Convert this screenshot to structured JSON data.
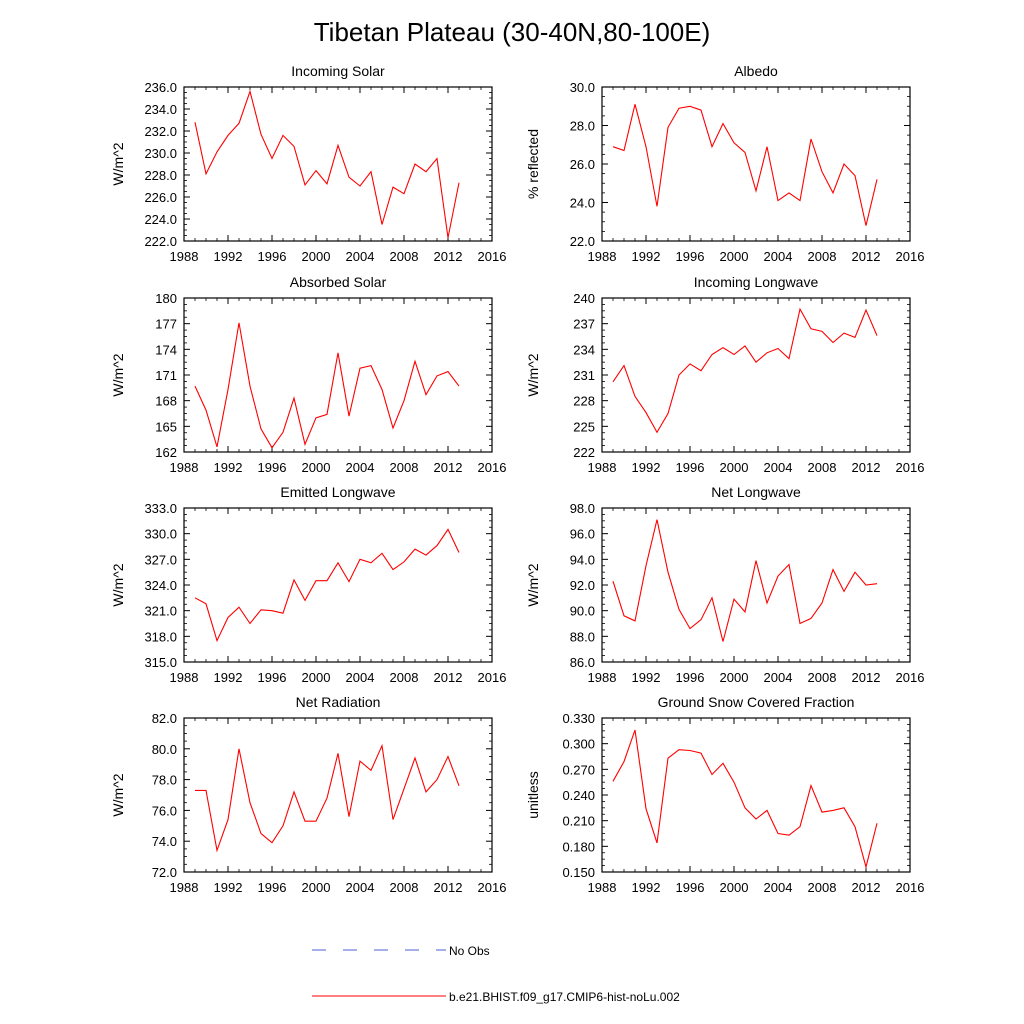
{
  "figure": {
    "title": "Tibetan Plateau (30-40N,80-100E)"
  },
  "legend": {
    "items": [
      {
        "label": "No Obs",
        "color": "#4b5fd6",
        "style": "dashed"
      },
      {
        "label": "b.e21.BHIST.f09_g17.CMIP6-hist-noLu.002",
        "color": "#ff0000",
        "style": "solid"
      }
    ]
  },
  "chart_data": [
    {
      "type": "line",
      "title": "Incoming Solar",
      "ylabel": "W/m^2",
      "xlim": [
        1988,
        2016
      ],
      "xticks": [
        "1988",
        "1992",
        "1996",
        "2000",
        "2004",
        "2008",
        "2012",
        "2016"
      ],
      "ylim": [
        222,
        236
      ],
      "yticks": [
        "222.0",
        "224.0",
        "226.0",
        "228.0",
        "230.0",
        "232.0",
        "234.0",
        "236.0"
      ],
      "x": [
        1989,
        1990,
        1991,
        1992,
        1993,
        1994,
        1995,
        1996,
        1997,
        1998,
        1999,
        2000,
        2001,
        2002,
        2003,
        2004,
        2005,
        2006,
        2007,
        2008,
        2009,
        2010,
        2011,
        2012,
        2013
      ],
      "series": [
        {
          "name": "b.e21.BHIST.f09_g17.CMIP6-hist-noLu.002",
          "color": "#ff0000",
          "values": [
            232.8,
            228.1,
            230.1,
            231.6,
            232.7,
            235.6,
            231.7,
            229.5,
            231.6,
            230.6,
            227.1,
            228.4,
            227.2,
            230.7,
            227.8,
            227.0,
            228.3,
            223.5,
            226.9,
            226.3,
            229.0,
            228.3,
            229.5,
            222.3,
            227.3
          ]
        }
      ]
    },
    {
      "type": "line",
      "title": "Albedo",
      "ylabel": "% reflected",
      "xlim": [
        1988,
        2016
      ],
      "xticks": [
        "1988",
        "1992",
        "1996",
        "2000",
        "2004",
        "2008",
        "2012",
        "2016"
      ],
      "ylim": [
        22,
        30
      ],
      "yticks": [
        "22.0",
        "24.0",
        "26.0",
        "28.0",
        "30.0"
      ],
      "x": [
        1989,
        1990,
        1991,
        1992,
        1993,
        1994,
        1995,
        1996,
        1997,
        1998,
        1999,
        2000,
        2001,
        2002,
        2003,
        2004,
        2005,
        2006,
        2007,
        2008,
        2009,
        2010,
        2011,
        2012,
        2013
      ],
      "series": [
        {
          "name": "b.e21.BHIST.f09_g17.CMIP6-hist-noLu.002",
          "color": "#ff0000",
          "values": [
            26.9,
            26.7,
            29.1,
            26.9,
            23.8,
            27.9,
            28.9,
            29.0,
            28.8,
            26.9,
            28.1,
            27.1,
            26.6,
            24.6,
            26.9,
            24.1,
            24.5,
            24.1,
            27.3,
            25.6,
            24.5,
            26.0,
            25.4,
            22.8,
            25.2
          ]
        }
      ]
    },
    {
      "type": "line",
      "title": "Absorbed Solar",
      "ylabel": "W/m^2",
      "xlim": [
        1988,
        2016
      ],
      "xticks": [
        "1988",
        "1992",
        "1996",
        "2000",
        "2004",
        "2008",
        "2012",
        "2016"
      ],
      "ylim": [
        162,
        180
      ],
      "yticks": [
        "162",
        "165",
        "168",
        "171",
        "174",
        "177",
        "180"
      ],
      "x": [
        1989,
        1990,
        1991,
        1992,
        1993,
        1994,
        1995,
        1996,
        1997,
        1998,
        1999,
        2000,
        2001,
        2002,
        2003,
        2004,
        2005,
        2006,
        2007,
        2008,
        2009,
        2010,
        2011,
        2012,
        2013
      ],
      "series": [
        {
          "name": "b.e21.BHIST.f09_g17.CMIP6-hist-noLu.002",
          "color": "#ff0000",
          "values": [
            169.7,
            166.9,
            162.6,
            169.3,
            177.1,
            169.7,
            164.7,
            162.5,
            164.3,
            168.3,
            162.9,
            166.0,
            166.4,
            173.6,
            166.2,
            171.8,
            172.1,
            169.3,
            164.8,
            168.0,
            172.6,
            168.7,
            170.9,
            171.4,
            169.7
          ]
        }
      ]
    },
    {
      "type": "line",
      "title": "Incoming Longwave",
      "ylabel": "W/m^2",
      "xlim": [
        1988,
        2016
      ],
      "xticks": [
        "1988",
        "1992",
        "1996",
        "2000",
        "2004",
        "2008",
        "2012",
        "2016"
      ],
      "ylim": [
        222,
        240
      ],
      "yticks": [
        "222",
        "225",
        "228",
        "231",
        "234",
        "237",
        "240"
      ],
      "x": [
        1989,
        1990,
        1991,
        1992,
        1993,
        1994,
        1995,
        1996,
        1997,
        1998,
        1999,
        2000,
        2001,
        2002,
        2003,
        2004,
        2005,
        2006,
        2007,
        2008,
        2009,
        2010,
        2011,
        2012,
        2013
      ],
      "series": [
        {
          "name": "b.e21.BHIST.f09_g17.CMIP6-hist-noLu.002",
          "color": "#ff0000",
          "values": [
            230.2,
            232.1,
            228.5,
            226.6,
            224.3,
            226.5,
            231.0,
            232.3,
            231.5,
            233.4,
            234.2,
            233.4,
            234.4,
            232.5,
            233.6,
            234.1,
            232.9,
            238.7,
            236.4,
            236.1,
            234.8,
            235.9,
            235.4,
            238.6,
            235.6
          ]
        }
      ]
    },
    {
      "type": "line",
      "title": "Emitted Longwave",
      "ylabel": "W/m^2",
      "xlim": [
        1988,
        2016
      ],
      "xticks": [
        "1988",
        "1992",
        "1996",
        "2000",
        "2004",
        "2008",
        "2012",
        "2016"
      ],
      "ylim": [
        315,
        333
      ],
      "yticks": [
        "315.0",
        "318.0",
        "321.0",
        "324.0",
        "327.0",
        "330.0",
        "333.0"
      ],
      "x": [
        1989,
        1990,
        1991,
        1992,
        1993,
        1994,
        1995,
        1996,
        1997,
        1998,
        1999,
        2000,
        2001,
        2002,
        2003,
        2004,
        2005,
        2006,
        2007,
        2008,
        2009,
        2010,
        2011,
        2012,
        2013
      ],
      "series": [
        {
          "name": "b.e21.BHIST.f09_g17.CMIP6-hist-noLu.002",
          "color": "#ff0000",
          "values": [
            322.5,
            321.8,
            317.5,
            320.2,
            321.4,
            319.5,
            321.1,
            321.0,
            320.7,
            324.6,
            322.2,
            324.5,
            324.5,
            326.6,
            324.4,
            327.0,
            326.6,
            327.7,
            325.8,
            326.7,
            328.2,
            327.5,
            328.6,
            330.5,
            327.8
          ]
        }
      ]
    },
    {
      "type": "line",
      "title": "Net Longwave",
      "ylabel": "W/m^2",
      "xlim": [
        1988,
        2016
      ],
      "xticks": [
        "1988",
        "1992",
        "1996",
        "2000",
        "2004",
        "2008",
        "2012",
        "2016"
      ],
      "ylim": [
        86,
        98
      ],
      "yticks": [
        "86.0",
        "88.0",
        "90.0",
        "92.0",
        "94.0",
        "96.0",
        "98.0"
      ],
      "x": [
        1989,
        1990,
        1991,
        1992,
        1993,
        1994,
        1995,
        1996,
        1997,
        1998,
        1999,
        2000,
        2001,
        2002,
        2003,
        2004,
        2005,
        2006,
        2007,
        2008,
        2009,
        2010,
        2011,
        2012,
        2013
      ],
      "series": [
        {
          "name": "b.e21.BHIST.f09_g17.CMIP6-hist-noLu.002",
          "color": "#ff0000",
          "values": [
            92.3,
            89.6,
            89.2,
            93.5,
            97.1,
            93.0,
            90.1,
            88.6,
            89.3,
            91.0,
            87.6,
            90.9,
            89.9,
            93.9,
            90.6,
            92.7,
            93.6,
            89.0,
            89.4,
            90.6,
            93.2,
            91.5,
            93.0,
            92.0,
            92.1
          ]
        }
      ]
    },
    {
      "type": "line",
      "title": "Net Radiation",
      "ylabel": "W/m^2",
      "xlim": [
        1988,
        2016
      ],
      "xticks": [
        "1988",
        "1992",
        "1996",
        "2000",
        "2004",
        "2008",
        "2012",
        "2016"
      ],
      "ylim": [
        72,
        82
      ],
      "yticks": [
        "72.0",
        "74.0",
        "76.0",
        "78.0",
        "80.0",
        "82.0"
      ],
      "x": [
        1989,
        1990,
        1991,
        1992,
        1993,
        1994,
        1995,
        1996,
        1997,
        1998,
        1999,
        2000,
        2001,
        2002,
        2003,
        2004,
        2005,
        2006,
        2007,
        2008,
        2009,
        2010,
        2011,
        2012,
        2013
      ],
      "series": [
        {
          "name": "b.e21.BHIST.f09_g17.CMIP6-hist-noLu.002",
          "color": "#ff0000",
          "values": [
            77.3,
            77.3,
            73.4,
            75.4,
            80.0,
            76.5,
            74.5,
            73.9,
            75.0,
            77.2,
            75.3,
            75.3,
            76.8,
            79.7,
            75.6,
            79.2,
            78.6,
            80.2,
            75.4,
            77.4,
            79.4,
            77.2,
            78.0,
            79.5,
            77.6
          ]
        }
      ]
    },
    {
      "type": "line",
      "title": "Ground Snow Covered Fraction",
      "ylabel": "unitless",
      "xlim": [
        1988,
        2016
      ],
      "xticks": [
        "1988",
        "1992",
        "1996",
        "2000",
        "2004",
        "2008",
        "2012",
        "2016"
      ],
      "ylim": [
        0.15,
        0.33
      ],
      "yticks": [
        "0.150",
        "0.180",
        "0.210",
        "0.240",
        "0.270",
        "0.300",
        "0.330"
      ],
      "x": [
        1989,
        1990,
        1991,
        1992,
        1993,
        1994,
        1995,
        1996,
        1997,
        1998,
        1999,
        2000,
        2001,
        2002,
        2003,
        2004,
        2005,
        2006,
        2007,
        2008,
        2009,
        2010,
        2011,
        2012,
        2013
      ],
      "series": [
        {
          "name": "b.e21.BHIST.f09_g17.CMIP6-hist-noLu.002",
          "color": "#ff0000",
          "values": [
            0.256,
            0.279,
            0.316,
            0.224,
            0.184,
            0.283,
            0.293,
            0.292,
            0.289,
            0.264,
            0.277,
            0.255,
            0.225,
            0.212,
            0.222,
            0.195,
            0.193,
            0.203,
            0.251,
            0.22,
            0.222,
            0.225,
            0.203,
            0.156,
            0.207
          ]
        }
      ]
    }
  ]
}
